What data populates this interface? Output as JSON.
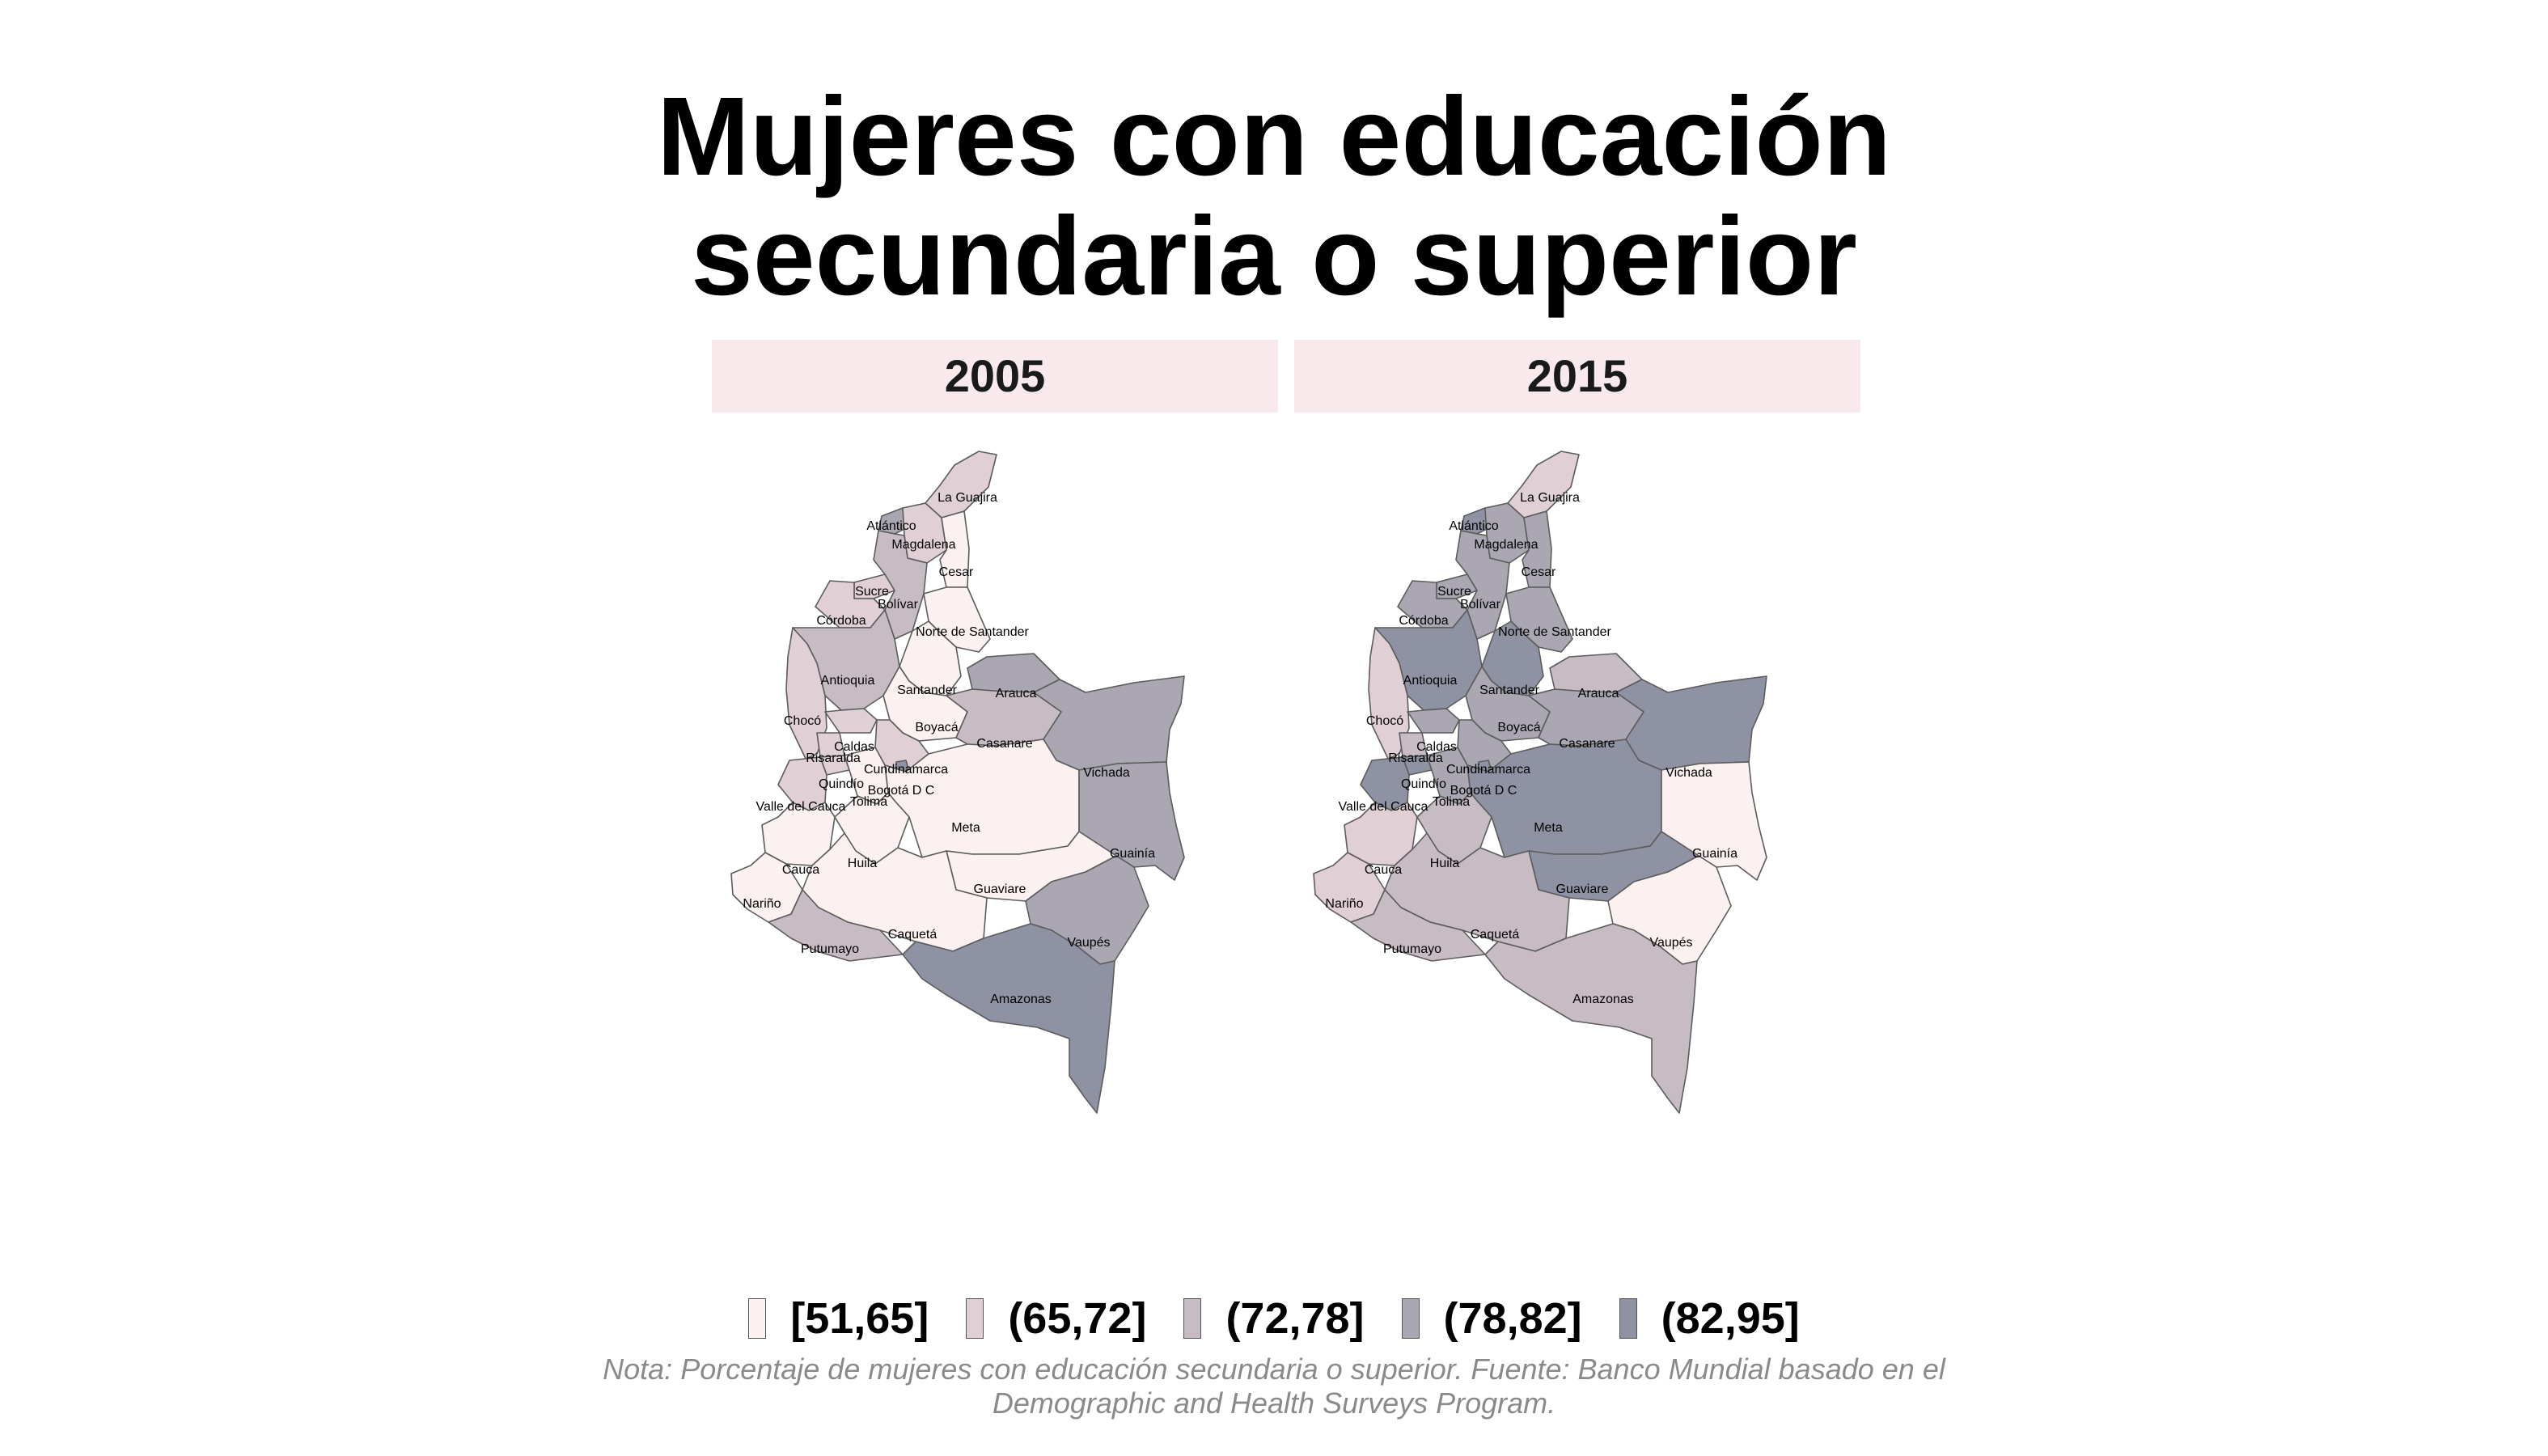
{
  "title": {
    "line1": "Mujeres con educación",
    "line2": "secundaria o superior"
  },
  "panels": [
    {
      "year": "2005",
      "regions": {
        "La Guajira": 1,
        "Atlántico": 3,
        "Magdalena": 1,
        "Cesar": 0,
        "Sucre": 1,
        "Bolívar": 2,
        "Córdoba": 1,
        "Norte de Santander": 0,
        "Antioquia": 2,
        "Santander": 0,
        "Arauca": 3,
        "Chocó": 1,
        "Caldas": 1,
        "Risaralda": 1,
        "Boyacá": 0,
        "Casanare": 2,
        "Cundinamarca": 1,
        "Vichada": 3,
        "Quindío": 1,
        "Tolima": 0,
        "Bogotá D C": 4,
        "Valle del Cauca": 1,
        "Meta": 0,
        "Guainía": 3,
        "Cauca": 0,
        "Huila": 0,
        "Guaviare": 0,
        "Nariño": 0,
        "Caquetá": 0,
        "Vaupés": 3,
        "Putumayo": 2,
        "Amazonas": 4
      }
    },
    {
      "year": "2015",
      "regions": {
        "La Guajira": 1,
        "Atlántico": 4,
        "Magdalena": 3,
        "Cesar": 3,
        "Sucre": 3,
        "Bolívar": 3,
        "Córdoba": 3,
        "Norte de Santander": 3,
        "Antioquia": 4,
        "Santander": 4,
        "Arauca": 2,
        "Chocó": 1,
        "Caldas": 3,
        "Risaralda": 2,
        "Boyacá": 3,
        "Casanare": 3,
        "Cundinamarca": 3,
        "Vichada": 4,
        "Quindío": 4,
        "Tolima": 3,
        "Bogotá D C": 4,
        "Valle del Cauca": 4,
        "Meta": 4,
        "Guainía": 0,
        "Cauca": 1,
        "Huila": 2,
        "Guaviare": 4,
        "Nariño": 1,
        "Caquetá": 2,
        "Vaupés": 0,
        "Putumayo": 2,
        "Amazonas": 2
      }
    }
  ],
  "legend": [
    {
      "label": "[51,65]",
      "color": "#fbf1f1"
    },
    {
      "label": "(65,72]",
      "color": "#e0d0d5"
    },
    {
      "label": "(72,78]",
      "color": "#c8bcc4"
    },
    {
      "label": "(78,82]",
      "color": "#aaa6b2"
    },
    {
      "label": "(82,95]",
      "color": "#8e92a2"
    }
  ],
  "caption": {
    "line1": "Nota: Porcentaje de mujeres con educación secundaria o superior. Fuente: Banco Mundial basado en el",
    "line2": "Demographic and Health Surveys Program."
  }
}
